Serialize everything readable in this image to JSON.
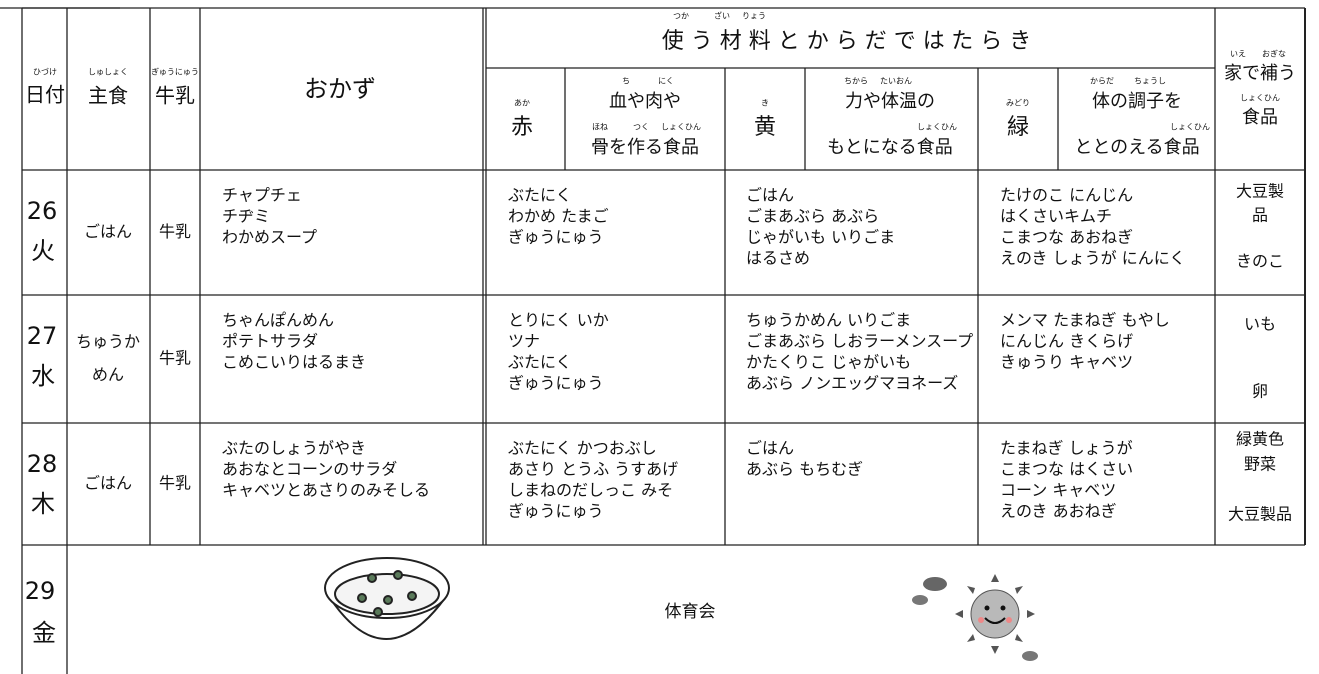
{
  "header": {
    "date_ruby": "ひづけ",
    "date": "日付",
    "staple_ruby": "しゅしょく",
    "staple": "主食",
    "milk_ruby": "ぎゅうにゅう",
    "milk": "牛乳",
    "dishes": "おかず",
    "title_ruby": [
      "つか",
      "ざい",
      "りょう"
    ],
    "title": "使う材料とからだではたらき",
    "red": {
      "label_ruby": "あか",
      "label": "赤",
      "ruby1": [
        "ち",
        "にく"
      ],
      "desc1": "血や肉や",
      "ruby2": [
        "ほね",
        "つく",
        "しょくひん"
      ],
      "desc2": "骨を作る食品"
    },
    "yellow": {
      "label_ruby": "き",
      "label": "黄",
      "ruby1": [
        "ちから",
        "たいおん"
      ],
      "desc1": "力や体温の",
      "ruby2": [
        "しょくひん"
      ],
      "desc2": "もとになる食品"
    },
    "green": {
      "label_ruby": "みどり",
      "label": "緑",
      "ruby1": [
        "からだ",
        "ちょうし"
      ],
      "desc1": "体の調子を",
      "ruby2": [
        "しょくひん"
      ],
      "desc2": "ととのえる食品"
    },
    "home_ruby": [
      "いえ",
      "おぎな"
    ],
    "home": "家で補う",
    "home_ruby2": "しょくひん",
    "home2": "食品"
  },
  "rows": [
    {
      "day": "26",
      "weekday": "火",
      "staple": [
        "ごはん"
      ],
      "milk": "牛乳",
      "dishes": [
        "チャプチェ",
        "チヂミ",
        "わかめスープ"
      ],
      "red": [
        "ぶたにく",
        "わかめ たまご",
        "ぎゅうにゅう"
      ],
      "yellow": [
        "ごはん",
        "ごまあぶら あぶら",
        "じゃがいも いりごま",
        "はるさめ"
      ],
      "green": [
        "たけのこ にんじん",
        "はくさいキムチ",
        "こまつな あおねぎ",
        "えのき しょうが にんにく"
      ],
      "home": [
        "大豆製",
        "品",
        "きのこ"
      ]
    },
    {
      "day": "27",
      "weekday": "水",
      "staple": [
        "ちゅうか",
        "めん"
      ],
      "milk": "牛乳",
      "dishes": [
        "ちゃんぽんめん",
        "ポテトサラダ",
        "こめこいりはるまき"
      ],
      "red": [
        "とりにく いか",
        "ツナ",
        "ぶたにく",
        "ぎゅうにゅう"
      ],
      "yellow": [
        "ちゅうかめん いりごま",
        "ごまあぶら しおラーメンスープ",
        "かたくりこ じゃがいも",
        "あぶら ノンエッグマヨネーズ"
      ],
      "green": [
        "メンマ たまねぎ もやし",
        "にんじん きくらげ",
        "きゅうり キャベツ"
      ],
      "home": [
        "いも",
        "卵"
      ]
    },
    {
      "day": "28",
      "weekday": "木",
      "staple": [
        "ごはん"
      ],
      "milk": "牛乳",
      "dishes": [
        "ぶたのしょうがやき",
        "あおなとコーンのサラダ",
        "キャベツとあさりのみそしる"
      ],
      "red": [
        "ぶたにく かつおぶし",
        "あさり とうふ うすあげ",
        "しまねのだしっこ みそ",
        "ぎゅうにゅう"
      ],
      "yellow": [
        "ごはん",
        "あぶら もちむぎ"
      ],
      "green": [
        "たまねぎ しょうが",
        "こまつな はくさい",
        "コーン キャベツ",
        "えのき あおねぎ"
      ],
      "home": [
        "緑黄色",
        "野菜",
        "大豆製品"
      ]
    }
  ],
  "event_row": {
    "day": "29",
    "weekday": "金",
    "event": "体育会"
  }
}
